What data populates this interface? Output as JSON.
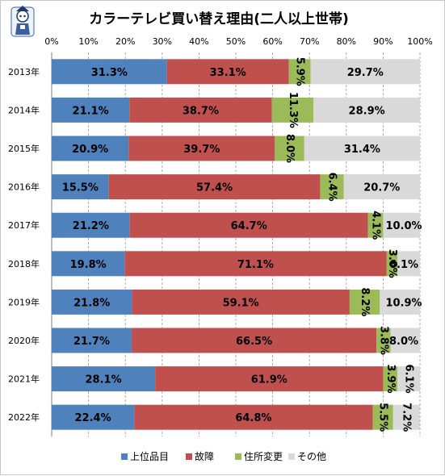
{
  "chart_data": {
    "type": "bar",
    "orientation": "horizontal",
    "stacked": "percent",
    "title": "カラーテレビ買い替え理由(二人以上世帯)",
    "categories": [
      "2013年",
      "2014年",
      "2015年",
      "2016年",
      "2017年",
      "2018年",
      "2019年",
      "2020年",
      "2021年",
      "2022年"
    ],
    "xlim": [
      0,
      100
    ],
    "xticks": [
      "0%",
      "10%",
      "20%",
      "30%",
      "40%",
      "50%",
      "60%",
      "70%",
      "80%",
      "90%",
      "100%"
    ],
    "series": [
      {
        "name": "上位品目",
        "color": "#4f81bd",
        "values": [
          31.3,
          21.1,
          20.9,
          15.5,
          21.2,
          19.8,
          21.8,
          21.7,
          28.1,
          22.4
        ],
        "labels": [
          "31.3%",
          "21.1%",
          "20.9%",
          "15.5%",
          "21.2%",
          "19.8%",
          "21.8%",
          "21.7%",
          "28.1%",
          "22.4%"
        ]
      },
      {
        "name": "故障",
        "color": "#c0504d",
        "values": [
          33.1,
          38.7,
          39.7,
          57.4,
          64.7,
          71.1,
          59.1,
          66.5,
          61.9,
          64.8
        ],
        "labels": [
          "33.1%",
          "38.7%",
          "39.7%",
          "57.4%",
          "64.7%",
          "71.1%",
          "59.1%",
          "66.5%",
          "61.9%",
          "64.8%"
        ]
      },
      {
        "name": "住所変更",
        "color": "#9bbb59",
        "values": [
          5.9,
          11.3,
          8.0,
          6.4,
          4.1,
          3.0,
          8.2,
          3.8,
          3.9,
          5.5
        ],
        "labels": [
          "5.9%",
          "11.3%",
          "8.0%",
          "6.4%",
          "4.1%",
          "3.0%",
          "8.2%",
          "3.8%",
          "3.9%",
          "5.5%"
        ]
      },
      {
        "name": "その他",
        "color": "#d9d9d9",
        "values": [
          29.7,
          28.9,
          31.4,
          20.7,
          10.0,
          6.1,
          10.9,
          8.0,
          6.1,
          7.2
        ],
        "labels": [
          "29.7%",
          "28.9%",
          "31.4%",
          "20.7%",
          "10.0%",
          "6.1%",
          "10.9%",
          "8.0%",
          "6.1%",
          "7.2%"
        ]
      }
    ],
    "legend_position": "bottom",
    "grid": "vertical-dashed"
  }
}
